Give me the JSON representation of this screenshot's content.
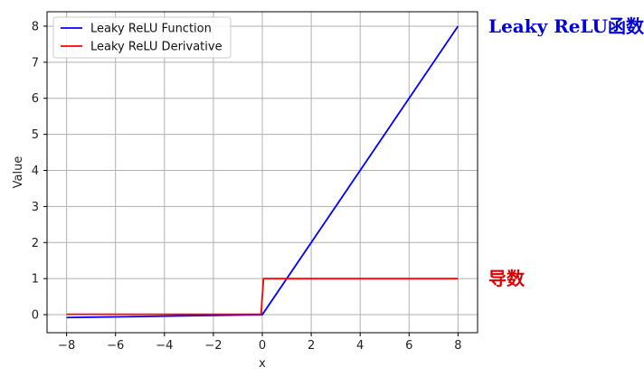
{
  "chart_data": {
    "type": "line",
    "xlabel": "x",
    "ylabel": "Value",
    "xlim": [
      -8.8,
      8.8
    ],
    "ylim": [
      -0.5,
      8.4
    ],
    "xticks": [
      -8,
      -6,
      -4,
      -2,
      0,
      2,
      4,
      6,
      8
    ],
    "xtick_labels": [
      "−8",
      "−6",
      "−4",
      "−2",
      "0",
      "2",
      "4",
      "6",
      "8"
    ],
    "yticks": [
      0,
      1,
      2,
      3,
      4,
      5,
      6,
      7,
      8
    ],
    "ytick_labels": [
      "0",
      "1",
      "2",
      "3",
      "4",
      "5",
      "6",
      "7",
      "8"
    ],
    "grid": true,
    "legend": "top-left",
    "series": [
      {
        "name": "Leaky ReLU Function",
        "color": "#0000ff",
        "x": [
          -8,
          0,
          8
        ],
        "y": [
          -0.08,
          0,
          8
        ]
      },
      {
        "name": "Leaky ReLU Derivative",
        "color": "#ff0000",
        "x": [
          -8,
          -0.05,
          0.05,
          8
        ],
        "y": [
          0.01,
          0.01,
          1,
          1
        ]
      }
    ],
    "annotations": [
      {
        "text": "Leaky ReLU函数",
        "color": "#0000dd",
        "y": 8
      },
      {
        "text": "导数",
        "color": "#dd0000",
        "y": 1
      }
    ]
  }
}
